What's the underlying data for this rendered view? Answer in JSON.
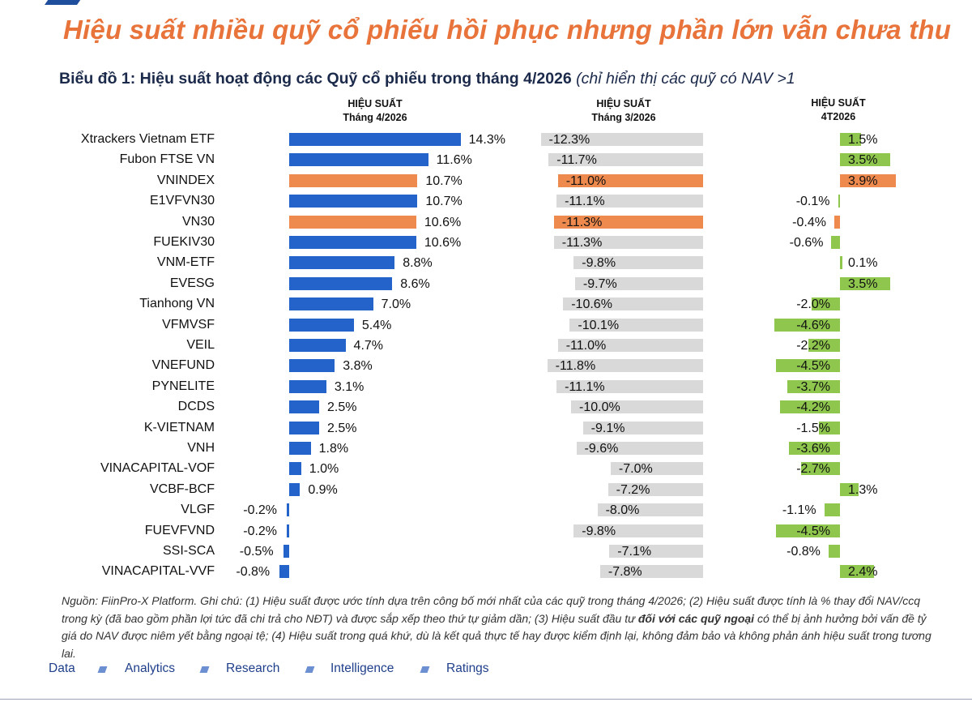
{
  "page": {
    "title": "Hiệu suất nhiều quỹ cổ phiếu hồi phục nhưng phần lớn vẫn chưa thu",
    "chart_title_bold": "Biểu đồ 1: Hiệu suất hoạt động các Quỹ cổ phiếu trong tháng 4/2026",
    "chart_title_italic": " (chỉ hiển thị các quỹ có NAV >1",
    "note_part1": "Nguồn: FiinPro-X Platform. Ghi chú: (1) Hiệu suất được ước tính dựa trên công bố mới nhất của các quỹ trong tháng 4/2026; (2) Hiệu suất được tính là % thay đổi NAV/ccq trong kỳ (đã bao gồm phần lợi tức đã chi trả cho NĐT) và được sắp xếp theo thứ tự giảm dần; (3) Hiệu suất đầu tư ",
    "note_bold": "đối với các quỹ ngoại",
    "note_part2": " có thể bị ảnh hưởng bởi vấn đề tỷ giá do NAV được niêm yết bằng ngoại tệ; (4) Hiệu suất trong quá khứ, dù là kết quả thực tế hay được kiểm định lại, không đảm bảo và không phản ánh hiệu suất trong tương lai.",
    "footer": [
      "Data",
      "Analytics",
      "Research",
      "Intelligence",
      "Ratings"
    ]
  },
  "colors": {
    "blue": "#2463c9",
    "orange": "#ee8a4e",
    "gray": "#d9d9d9",
    "green": "#8fc74e",
    "title_orange": "#e8743b",
    "footer_blue": "#1f3f8a"
  },
  "chart_data": {
    "type": "bar",
    "orientation": "horizontal",
    "categories": [
      "Xtrackers Vietnam ETF",
      "Fubon FTSE VN",
      "VNINDEX",
      "E1VFVN30",
      "VN30",
      "FUEKIV30",
      "VNM-ETF",
      "EVESG",
      "Tianhong VN",
      "VFMVSF",
      "VEIL",
      "VNEFUND",
      "PYNELITE",
      "DCDS",
      "K-VIETNAM",
      "VNH",
      "VINACAPITAL-VOF",
      "VCBF-BCF",
      "VLGF",
      "FUEVFVND",
      "SSI-SCA",
      "VINACAPITAL-VVF"
    ],
    "highlighted": [
      "VNINDEX",
      "VN30"
    ],
    "unit": "%",
    "series": [
      {
        "name": "HIỆU SUẤT\nTháng 4/2026",
        "header": [
          "HIỆU SUẤT",
          "Tháng 4/2026"
        ],
        "values": [
          14.3,
          11.6,
          10.7,
          10.7,
          10.6,
          10.6,
          8.8,
          8.6,
          7.0,
          5.4,
          4.7,
          3.8,
          3.1,
          2.5,
          2.5,
          1.8,
          1.0,
          0.9,
          -0.2,
          -0.2,
          -0.5,
          -0.8
        ]
      },
      {
        "name": "HIỆU SUẤT\nTháng 3/2026",
        "header": [
          "HIỆU SUẤT",
          "Tháng 3/2026"
        ],
        "values": [
          -12.3,
          -11.7,
          -11.0,
          -11.1,
          -11.3,
          -11.3,
          -9.8,
          -9.7,
          -10.6,
          -10.1,
          -11.0,
          -11.8,
          -11.1,
          -10.0,
          -9.1,
          -9.6,
          -7.0,
          -7.2,
          -8.0,
          -9.8,
          -7.1,
          -7.8
        ]
      },
      {
        "name": "HIỆU SUẤT\n4T2026",
        "header": [
          "HIỆU SUẤT",
          "4T2026"
        ],
        "values": [
          1.5,
          3.5,
          3.9,
          -0.1,
          -0.4,
          -0.6,
          0.1,
          3.5,
          -2.0,
          -4.6,
          -2.2,
          -4.5,
          -3.7,
          -4.2,
          -1.5,
          -3.6,
          -2.7,
          1.3,
          -1.1,
          -4.5,
          -0.8,
          2.4
        ]
      }
    ]
  }
}
